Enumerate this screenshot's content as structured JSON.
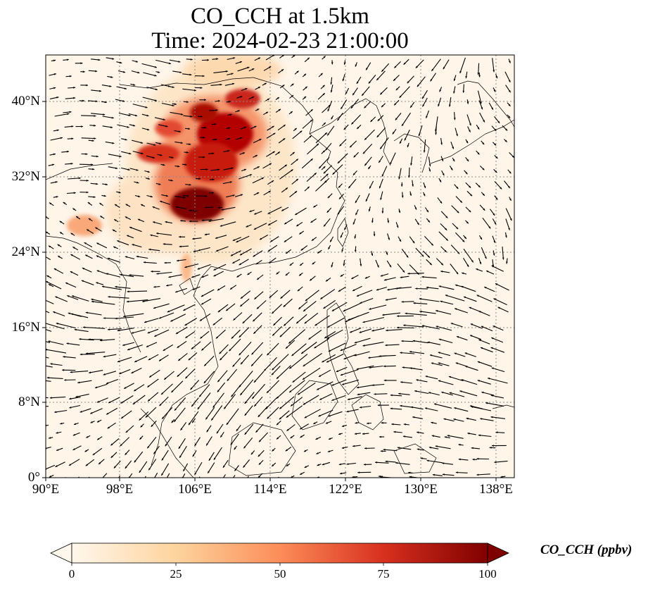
{
  "title": {
    "line1": "CO_CCH at 1.5km",
    "line2": "Time: 2024-02-23 21:00:00"
  },
  "map": {
    "variable": "CO_CCH",
    "level": "1.5km",
    "lon_range": [
      90,
      140
    ],
    "lat_range": [
      0,
      45
    ],
    "gridlines": "dotted",
    "lat_ticks": [
      {
        "value": 40,
        "label": "40°N"
      },
      {
        "value": 32,
        "label": "32°N"
      },
      {
        "value": 24,
        "label": "24°N"
      },
      {
        "value": 16,
        "label": "16°N"
      },
      {
        "value": 8,
        "label": "8°N"
      },
      {
        "value": 0,
        "label": "0°"
      }
    ],
    "lon_ticks": [
      {
        "value": 90,
        "label": "90°E"
      },
      {
        "value": 98,
        "label": "98°E"
      },
      {
        "value": 106,
        "label": "106°E"
      },
      {
        "value": 114,
        "label": "114°E"
      },
      {
        "value": 122,
        "label": "122°E"
      },
      {
        "value": 130,
        "label": "130°E"
      },
      {
        "value": 138,
        "label": "138°E"
      }
    ],
    "wind_vectors": "quiver arrows over region",
    "high_concentration_region": "central/southwest China (~100-113°E, 27-42°N)"
  },
  "colorbar": {
    "label": "CO_CCH (ppbv)",
    "colormap": "OrRd",
    "range": [
      0,
      100
    ],
    "extend": "both",
    "ticks": [
      {
        "value": 0,
        "label": "0"
      },
      {
        "value": 25,
        "label": "25"
      },
      {
        "value": 50,
        "label": "50"
      },
      {
        "value": 75,
        "label": "75"
      },
      {
        "value": 100,
        "label": "100"
      }
    ],
    "colors": [
      "#fff7ec",
      "#fdd49e",
      "#fc8d59",
      "#d7301f",
      "#7f0000"
    ]
  }
}
